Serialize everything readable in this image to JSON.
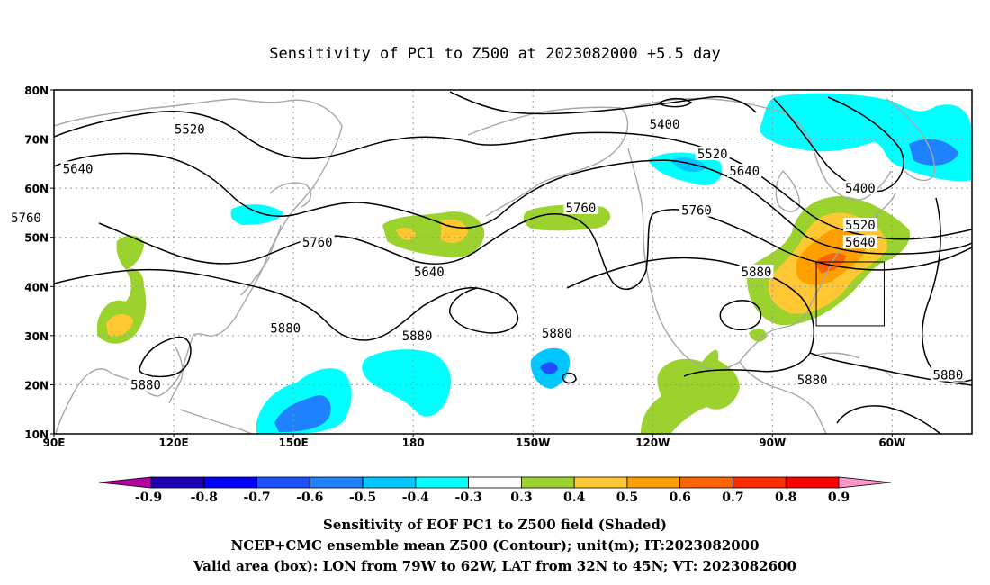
{
  "title": "Sensitivity of PC1 to Z500 at 2023082000 +5.5 day",
  "axes": {
    "lon_ticks": [
      "90E",
      "120E",
      "150E",
      "180",
      "150W",
      "120W",
      "90W",
      "60W"
    ],
    "lat_ticks": [
      "80N",
      "70N",
      "60N",
      "50N",
      "40N",
      "30N",
      "20N",
      "10N"
    ]
  },
  "contour_labels": [
    {
      "text": "5520",
      "lon": 124,
      "lat": 72
    },
    {
      "text": "5400",
      "lon": 243,
      "lat": 73
    },
    {
      "text": "5520",
      "lon": 255,
      "lat": 67
    },
    {
      "text": "5640",
      "lon": 96,
      "lat": 64
    },
    {
      "text": "5640",
      "lon": 263,
      "lat": 63.5
    },
    {
      "text": "5400",
      "lon": 292,
      "lat": 60
    },
    {
      "text": "5760",
      "lon": 83,
      "lat": 54
    },
    {
      "text": "5760",
      "lon": 222,
      "lat": 56
    },
    {
      "text": "5760",
      "lon": 251,
      "lat": 55.5
    },
    {
      "text": "5520",
      "lon": 292,
      "lat": 52.5
    },
    {
      "text": "5760",
      "lon": 156,
      "lat": 49
    },
    {
      "text": "5640",
      "lon": 184,
      "lat": 43
    },
    {
      "text": "5640",
      "lon": 292,
      "lat": 49
    },
    {
      "text": "5880",
      "lon": 266,
      "lat": 43
    },
    {
      "text": "5880",
      "lon": 148,
      "lat": 31.5
    },
    {
      "text": "5880",
      "lon": 181,
      "lat": 30
    },
    {
      "text": "5880",
      "lon": 216,
      "lat": 30.5
    },
    {
      "text": "5880",
      "lon": 280,
      "lat": 21
    },
    {
      "text": "5880",
      "lon": 314,
      "lat": 22
    },
    {
      "text": "5880",
      "lon": 113,
      "lat": 20
    }
  ],
  "valid_box": {
    "lon_min": -79,
    "lon_max": -62,
    "lat_min": 32,
    "lat_max": 45
  },
  "colorbar": {
    "labels": [
      "-0.9",
      "-0.8",
      "-0.7",
      "-0.6",
      "-0.5",
      "-0.4",
      "-0.3",
      "0.3",
      "0.4",
      "0.5",
      "0.6",
      "0.7",
      "0.8",
      "0.9"
    ],
    "colors": [
      "#b4009e",
      "#1e00b4",
      "#0000ff",
      "#1e50ff",
      "#1e82ff",
      "#00c8ff",
      "#00ffff",
      "#ffffff",
      "#9bd22d",
      "#ffc832",
      "#ffa000",
      "#ff6400",
      "#ff2d00",
      "#ff0000",
      "#ff96c8"
    ]
  },
  "captions": [
    "Sensitivity of EOF PC1 to Z500 field (Shaded)",
    "NCEP+CMC ensemble mean Z500 (Contour); unit(m); IT:2023082000",
    "Valid area (box): LON from 79W to 62W, LAT from 32N to 45N; VT: 2023082600"
  ]
}
